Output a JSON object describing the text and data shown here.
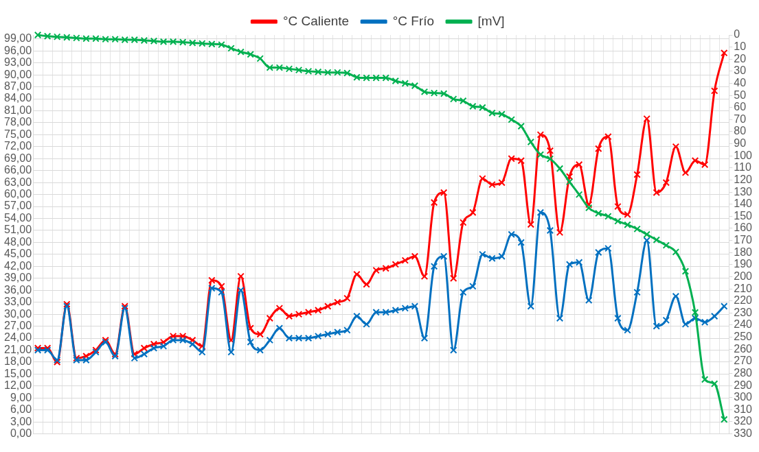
{
  "chart_data": {
    "type": "line",
    "categories": [
      null,
      null,
      null,
      null,
      null,
      null,
      null,
      null,
      null,
      null,
      null,
      null,
      null,
      null,
      null,
      null,
      null,
      null,
      null,
      null,
      null,
      null,
      null,
      null,
      null,
      null,
      null,
      null,
      null,
      null,
      null,
      null,
      null,
      null,
      null,
      null,
      null,
      null,
      null,
      null,
      null,
      null,
      null,
      null,
      null,
      null,
      null,
      null,
      null,
      null,
      null,
      null,
      null,
      null,
      null,
      null,
      null,
      null,
      null,
      null,
      null,
      null,
      null,
      null,
      null,
      null,
      null,
      null,
      null,
      null,
      null,
      null
    ],
    "series": [
      {
        "name": "°C Caliente",
        "color": "#ff0000",
        "values": [
          21.5,
          21.5,
          18,
          32.5,
          19,
          19.5,
          21,
          23.5,
          20,
          32,
          20,
          21.5,
          22.5,
          23,
          24.5,
          24.5,
          23.5,
          22,
          38.5,
          37,
          23.5,
          39.5,
          26.5,
          25,
          29,
          31.5,
          29.5,
          30,
          30.5,
          31,
          32,
          33,
          34,
          40,
          37.5,
          41,
          41.5,
          42.5,
          43.5,
          44.5,
          39.5,
          58,
          60.5,
          39,
          53,
          55.5,
          64,
          62.5,
          63,
          69,
          68.5,
          52.5,
          75,
          71,
          50.5,
          64.5,
          67.5,
          57.5,
          71.5,
          74.5,
          57,
          55,
          65,
          79,
          60.5,
          63,
          72,
          65.5,
          68.5,
          67.5,
          86,
          95.5
        ]
      },
      {
        "name": "°C Frío",
        "color": "#0070c0",
        "values": [
          21,
          21,
          18.5,
          32,
          18.5,
          18.5,
          20.5,
          23,
          19.5,
          31.5,
          19,
          20,
          21.5,
          22,
          23.5,
          23.5,
          22.5,
          20.5,
          36.5,
          35.5,
          20.5,
          36,
          23,
          21,
          23.5,
          26.5,
          24,
          24,
          24,
          24.5,
          25,
          25.5,
          26,
          29.5,
          27.5,
          30.5,
          30.5,
          31,
          31.5,
          32,
          24,
          42,
          44.5,
          21,
          35.5,
          37,
          45,
          44,
          44.5,
          50,
          48,
          32,
          55.5,
          51,
          29,
          42.5,
          43,
          33.5,
          45.5,
          46.5,
          29,
          26,
          35.5,
          48.5,
          27,
          28.5,
          34.5,
          27.5,
          29,
          28,
          29.5,
          32
        ]
      },
      {
        "name": "[mV]",
        "color": "#00b050",
        "axis": "y2",
        "values": [
          0,
          1,
          1.5,
          2,
          2.5,
          3,
          3,
          3.5,
          3.5,
          4,
          4,
          4.5,
          5,
          5.5,
          5.5,
          6,
          6.5,
          7,
          7.5,
          8,
          11,
          14,
          16,
          19.5,
          27,
          27,
          28,
          29,
          30,
          30.5,
          31,
          31,
          31.5,
          35,
          35.5,
          35.5,
          35.5,
          38,
          40,
          42,
          47,
          48,
          48.5,
          53,
          54.5,
          59,
          60,
          64.5,
          65.5,
          70,
          75.5,
          88.5,
          99,
          102.5,
          110.5,
          121.5,
          132,
          143,
          147.5,
          150,
          154,
          157,
          160.5,
          165,
          169.5,
          174,
          179.5,
          195.5,
          229.5,
          285,
          288.5,
          318
        ]
      }
    ],
    "ylim": [
      0,
      100
    ],
    "yticks": [
      {
        "value": 0,
        "label": "0,00"
      },
      {
        "value": 3,
        "label": "3,00"
      },
      {
        "value": 6,
        "label": "6,00"
      },
      {
        "value": 9,
        "label": "9,00"
      },
      {
        "value": 12,
        "label": "12,00"
      },
      {
        "value": 15,
        "label": "15,00"
      },
      {
        "value": 18,
        "label": "18,00"
      },
      {
        "value": 21,
        "label": "21,00"
      },
      {
        "value": 24,
        "label": "24,00"
      },
      {
        "value": 27,
        "label": "27,00"
      },
      {
        "value": 30,
        "label": "30,00"
      },
      {
        "value": 33,
        "label": "33,00"
      },
      {
        "value": 36,
        "label": "36,00"
      },
      {
        "value": 39,
        "label": "39,00"
      },
      {
        "value": 42,
        "label": "42,00"
      },
      {
        "value": 45,
        "label": "45,00"
      },
      {
        "value": 48,
        "label": "48,00"
      },
      {
        "value": 51,
        "label": "51,00"
      },
      {
        "value": 54,
        "label": "54,00"
      },
      {
        "value": 57,
        "label": "57,00"
      },
      {
        "value": 60,
        "label": "60,00"
      },
      {
        "value": 63,
        "label": "63,00"
      },
      {
        "value": 66,
        "label": "66,00"
      },
      {
        "value": 69,
        "label": "69,00"
      },
      {
        "value": 72,
        "label": "72,00"
      },
      {
        "value": 75,
        "label": "75,00"
      },
      {
        "value": 78,
        "label": "78,00"
      },
      {
        "value": 81,
        "label": "81,00"
      },
      {
        "value": 84,
        "label": "84,00"
      },
      {
        "value": 87,
        "label": "87,00"
      },
      {
        "value": 90,
        "label": "90,00"
      },
      {
        "value": 93,
        "label": "93,00"
      },
      {
        "value": 96,
        "label": "96,00"
      },
      {
        "value": 99,
        "label": "99,00"
      }
    ],
    "y2lim": [
      330,
      0
    ],
    "y2ticks": [
      0,
      10,
      20,
      30,
      40,
      50,
      60,
      70,
      80,
      90,
      100,
      110,
      120,
      130,
      140,
      150,
      160,
      170,
      180,
      190,
      200,
      210,
      220,
      230,
      240,
      250,
      260,
      270,
      280,
      290,
      300,
      310,
      320,
      330
    ],
    "grid": true,
    "legend": "top",
    "marker": "cross",
    "line_style": "solid"
  }
}
